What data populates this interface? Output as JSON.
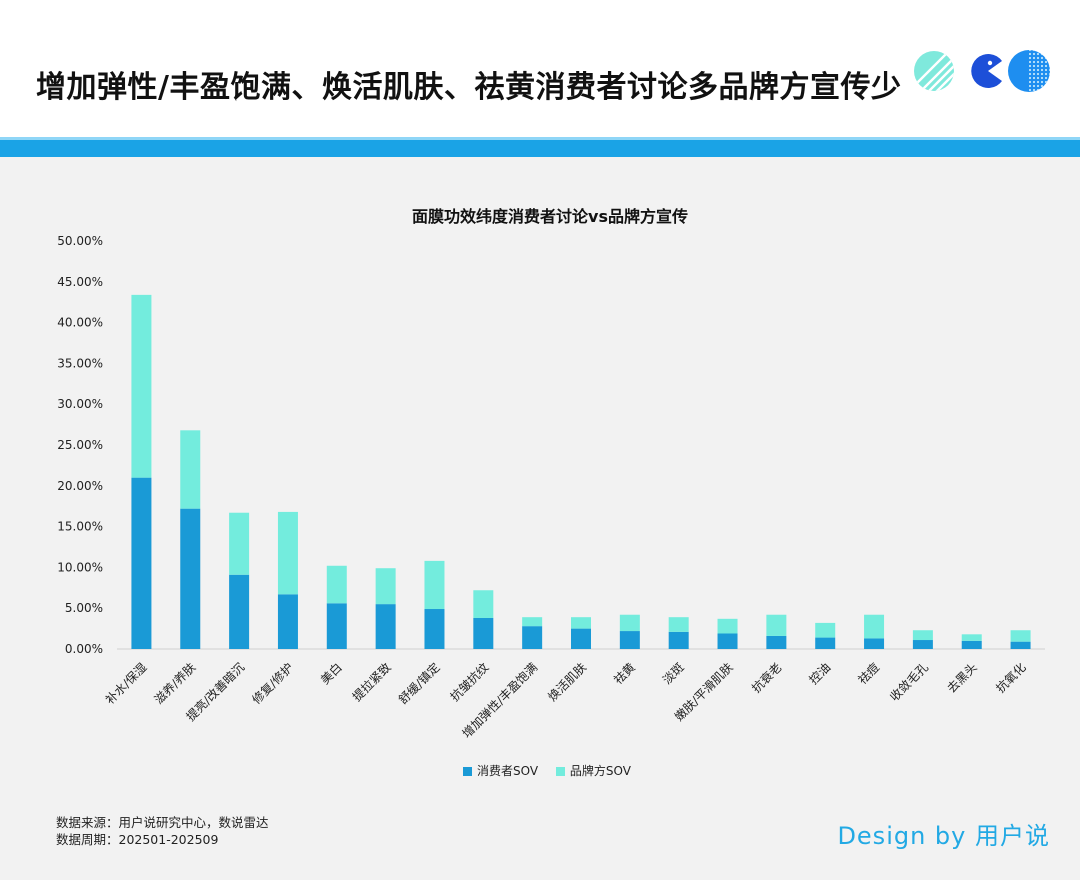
{
  "header": {
    "title": "增加弹性/丰盈饱满、焕活肌肤、祛黄消费者讨论多品牌方宣传少"
  },
  "colors": {
    "consumer": "#1a9ad6",
    "brand": "#73ecdd",
    "accent": "#1aa3e6",
    "logo_blue": "#1d4fd8"
  },
  "chart_data": {
    "type": "bar",
    "stacked": true,
    "title": "面膜功效纬度消费者讨论vs品牌方宣传",
    "categories": [
      "补水/保湿",
      "滋养/养肤",
      "提亮/改善暗沉",
      "修复/修护",
      "美白",
      "提拉紧致",
      "舒缓/镇定",
      "抗皱抗纹",
      "增加弹性/丰盈饱满",
      "焕活肌肤",
      "祛黄",
      "淡斑",
      "嫩肤/平滑肌肤",
      "抗衰老",
      "控油",
      "祛痘",
      "收敛毛孔",
      "去黑头",
      "抗氧化"
    ],
    "series": [
      {
        "name": "消费者SOV",
        "values": [
          21.0,
          17.2,
          9.1,
          6.7,
          5.6,
          5.5,
          4.9,
          3.8,
          2.8,
          2.5,
          2.2,
          2.1,
          1.9,
          1.6,
          1.4,
          1.3,
          1.1,
          1.0,
          0.9
        ]
      },
      {
        "name": "品牌方SOV",
        "values": [
          22.4,
          9.6,
          7.6,
          10.1,
          4.6,
          4.4,
          5.9,
          3.4,
          1.1,
          1.4,
          2.0,
          1.8,
          1.8,
          2.6,
          1.8,
          2.9,
          1.2,
          0.8,
          1.4
        ]
      }
    ],
    "ylim": [
      0,
      50
    ],
    "yticks": [
      "0.00%",
      "5.00%",
      "10.00%",
      "15.00%",
      "20.00%",
      "25.00%",
      "30.00%",
      "35.00%",
      "40.00%",
      "45.00%",
      "50.00%"
    ],
    "xlabel": "",
    "ylabel": "",
    "legend_position": "bottom",
    "grid": false
  },
  "legend": {
    "consumer": "消费者SOV",
    "brand": "品牌方SOV"
  },
  "footer": {
    "source": "数据来源：用户说研究中心，数说雷达",
    "period": "数据周期：202501-202509"
  },
  "brand_mark": "Design by 用户说"
}
